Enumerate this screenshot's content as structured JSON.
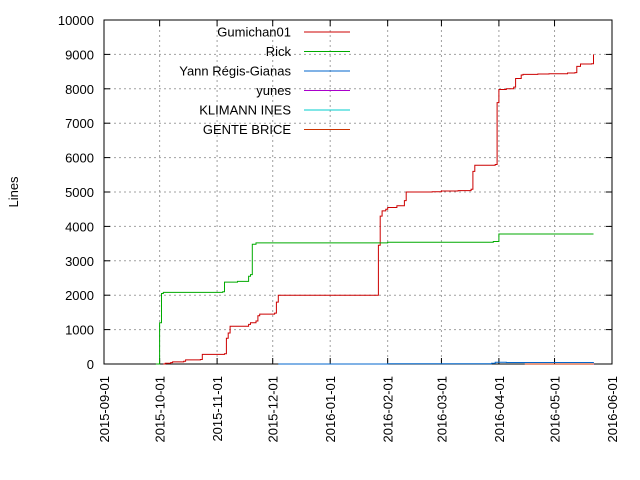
{
  "chart_data": {
    "type": "line",
    "title": "",
    "xlabel": "",
    "ylabel": "Lines",
    "ylim": [
      0,
      10000
    ],
    "xlim": [
      "2015-09-01",
      "2016-06-01"
    ],
    "grid": true,
    "legend_position": "top-left",
    "y_ticks": [
      0,
      1000,
      2000,
      3000,
      4000,
      5000,
      6000,
      7000,
      8000,
      9000,
      10000
    ],
    "y_tick_labels": [
      "0",
      "1000",
      "2000",
      "3000",
      "4000",
      "5000",
      "6000",
      "7000",
      "8000",
      "9000",
      "10000"
    ],
    "x_ticks": [
      "2015-09-01",
      "2015-10-01",
      "2015-11-01",
      "2015-12-01",
      "2016-01-01",
      "2016-02-01",
      "2016-03-01",
      "2016-04-01",
      "2016-05-01",
      "2016-06-01"
    ],
    "x_tick_labels": [
      "2015-09-01",
      "2015-10-01",
      "2015-11-01",
      "2015-12-01",
      "2016-01-01",
      "2016-02-01",
      "2016-03-01",
      "2016-04-01",
      "2016-05-01",
      "2016-06-01"
    ],
    "series": [
      {
        "name": "Gumichan01",
        "color": "#cc0000",
        "points": [
          [
            "2015-10-03",
            0
          ],
          [
            "2015-10-04",
            20
          ],
          [
            "2015-10-07",
            40
          ],
          [
            "2015-10-08",
            60
          ],
          [
            "2015-10-14",
            80
          ],
          [
            "2015-10-15",
            120
          ],
          [
            "2015-10-23",
            130
          ],
          [
            "2015-10-24",
            280
          ],
          [
            "2015-11-05",
            300
          ],
          [
            "2015-11-06",
            750
          ],
          [
            "2015-11-07",
            900
          ],
          [
            "2015-11-08",
            1100
          ],
          [
            "2015-11-18",
            1150
          ],
          [
            "2015-11-19",
            1200
          ],
          [
            "2015-11-22",
            1250
          ],
          [
            "2015-11-23",
            1400
          ],
          [
            "2015-11-24",
            1450
          ],
          [
            "2015-12-02",
            1480
          ],
          [
            "2015-12-03",
            1800
          ],
          [
            "2015-12-04",
            2000
          ],
          [
            "2016-01-27",
            3450
          ],
          [
            "2016-01-28",
            4300
          ],
          [
            "2016-01-29",
            4450
          ],
          [
            "2016-01-31",
            4500
          ],
          [
            "2016-02-01",
            4550
          ],
          [
            "2016-02-06",
            4600
          ],
          [
            "2016-02-10",
            4750
          ],
          [
            "2016-02-11",
            5000
          ],
          [
            "2016-02-25",
            5010
          ],
          [
            "2016-03-01",
            5030
          ],
          [
            "2016-03-10",
            5040
          ],
          [
            "2016-03-17",
            5080
          ],
          [
            "2016-03-18",
            5600
          ],
          [
            "2016-03-19",
            5780
          ],
          [
            "2016-03-30",
            5800
          ],
          [
            "2016-03-31",
            7600
          ],
          [
            "2016-04-01",
            7980
          ],
          [
            "2016-04-05",
            8000
          ],
          [
            "2016-04-09",
            8050
          ],
          [
            "2016-04-10",
            8300
          ],
          [
            "2016-04-13",
            8400
          ],
          [
            "2016-04-14",
            8420
          ],
          [
            "2016-04-22",
            8430
          ],
          [
            "2016-04-28",
            8440
          ],
          [
            "2016-05-08",
            8460
          ],
          [
            "2016-05-12",
            8470
          ],
          [
            "2016-05-13",
            8650
          ],
          [
            "2016-05-15",
            8720
          ],
          [
            "2016-05-21",
            8730
          ],
          [
            "2016-05-22",
            9000
          ]
        ]
      },
      {
        "name": "Rick",
        "color": "#00aa00",
        "points": [
          [
            "2015-09-29",
            0
          ],
          [
            "2015-10-01",
            1200
          ],
          [
            "2015-10-02",
            2050
          ],
          [
            "2015-10-03",
            2080
          ],
          [
            "2015-10-20",
            2080
          ],
          [
            "2015-11-04",
            2100
          ],
          [
            "2015-11-05",
            2380
          ],
          [
            "2015-11-12",
            2400
          ],
          [
            "2015-11-18",
            2550
          ],
          [
            "2015-11-19",
            2600
          ],
          [
            "2015-11-20",
            3480
          ],
          [
            "2015-11-22",
            3520
          ],
          [
            "2016-02-01",
            3540
          ],
          [
            "2016-03-29",
            3560
          ],
          [
            "2016-04-01",
            3780
          ],
          [
            "2016-05-22",
            3780
          ]
        ]
      },
      {
        "name": "Yann Régis-Gianas",
        "color": "#0066cc",
        "points": [
          [
            "2015-12-04",
            0
          ],
          [
            "2016-02-01",
            10
          ],
          [
            "2016-03-28",
            20
          ],
          [
            "2016-03-30",
            50
          ],
          [
            "2016-04-05",
            45
          ],
          [
            "2016-05-22",
            50
          ]
        ]
      },
      {
        "name": "yunes",
        "color": "#aa00cc",
        "points": [
          [
            "2016-04-15",
            0
          ],
          [
            "2016-05-22",
            10
          ]
        ]
      },
      {
        "name": "KLIMANN INES",
        "color": "#00cccc",
        "points": [
          [
            "2016-04-15",
            0
          ],
          [
            "2016-05-22",
            0
          ]
        ]
      },
      {
        "name": "GENTE BRICE",
        "color": "#cc3300",
        "points": [
          [
            "2016-04-15",
            0
          ],
          [
            "2016-05-22",
            0
          ]
        ]
      }
    ]
  }
}
